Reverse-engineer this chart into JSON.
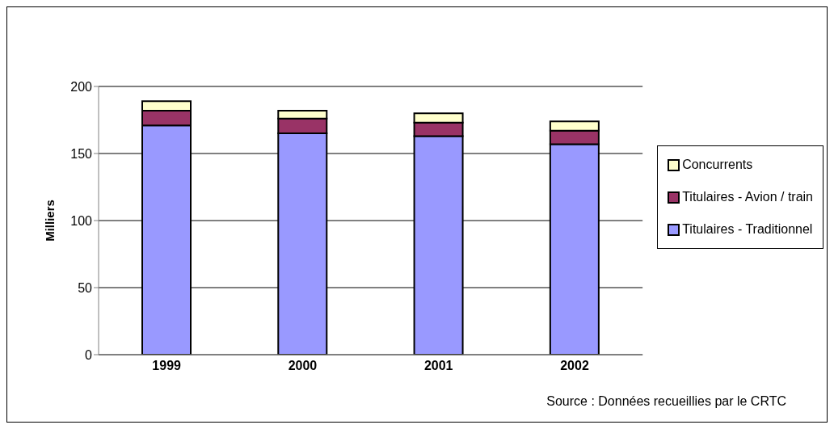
{
  "chart_data": {
    "type": "bar",
    "stacked": true,
    "ylabel": "Milliers",
    "categories": [
      "1999",
      "2000",
      "2001",
      "2002"
    ],
    "series": [
      {
        "name": "Titulaires - Traditionnel",
        "color": "#9999ff",
        "values": [
          171,
          165,
          163,
          157
        ]
      },
      {
        "name": "Titulaires - Avion / train",
        "color": "#993366",
        "values": [
          11,
          11,
          10,
          10
        ]
      },
      {
        "name": "Concurrents",
        "color": "#ffffcc",
        "values": [
          7,
          6,
          7,
          7
        ]
      }
    ],
    "ylim": [
      0,
      200
    ],
    "yticks": [
      0,
      50,
      100,
      150,
      200
    ],
    "grid": "y",
    "legend": "right",
    "annotations": [
      "Source : Données recueillies par le CRTC"
    ]
  }
}
